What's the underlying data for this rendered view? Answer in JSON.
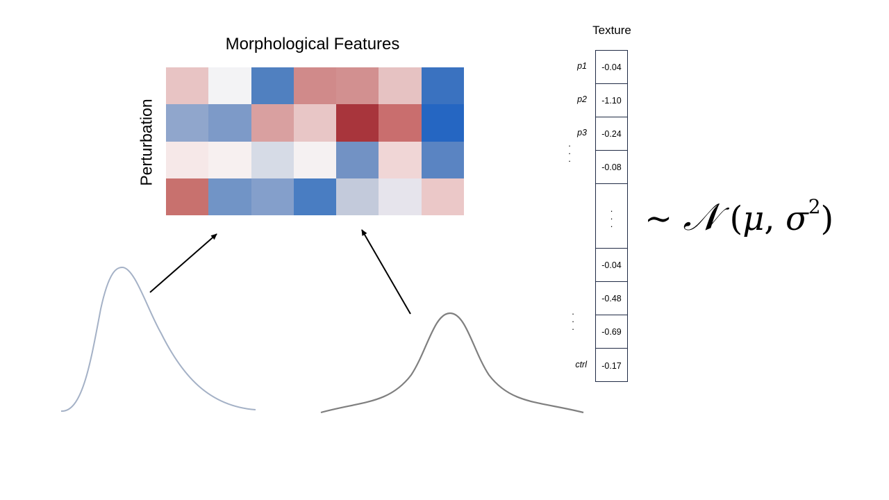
{
  "heatmap": {
    "title": "Morphological Features",
    "y_label": "Perturbation",
    "rows": [
      [
        "#e8c4c4",
        "#f3f3f5",
        "#5080c0",
        "#d08a8a",
        "#d29090",
        "#e6c2c2",
        "#3a72c0"
      ],
      [
        "#90a6cc",
        "#7d9ac8",
        "#d9a0a0",
        "#e8c6c6",
        "#a8353c",
        "#c96e6e",
        "#2566c2"
      ],
      [
        "#f6e8e8",
        "#f7f0f0",
        "#d6dbe6",
        "#f5f1f2",
        "#7292c4",
        "#f0d6d6",
        "#5a84c2"
      ],
      [
        "#c8716e",
        "#7194c6",
        "#849fcb",
        "#497dc2",
        "#c3cadb",
        "#e6e4ec",
        "#ebc8c8"
      ]
    ]
  },
  "texture": {
    "title": "Texture",
    "rows": [
      {
        "label": "p1",
        "value": "-0.04"
      },
      {
        "label": "p2",
        "value": "-1.10"
      },
      {
        "label": "p3",
        "value": "-0.24"
      },
      {
        "label": "",
        "value": "-0.08"
      },
      {
        "label": "",
        "value": ""
      },
      {
        "label": "",
        "value": "-0.04"
      },
      {
        "label": "",
        "value": "-0.48"
      },
      {
        "label": "",
        "value": "-0.69"
      },
      {
        "label": "ctrl",
        "value": "-0.17"
      }
    ]
  },
  "formula": {
    "tilde": "∼",
    "N": "𝒩",
    "mu": "μ",
    "sigma": "σ",
    "exp": "2"
  },
  "curves": [
    {
      "name": "skewed-distribution",
      "color": "#a4b1c6"
    },
    {
      "name": "normal-distribution",
      "color": "#7f7f7f"
    }
  ]
}
